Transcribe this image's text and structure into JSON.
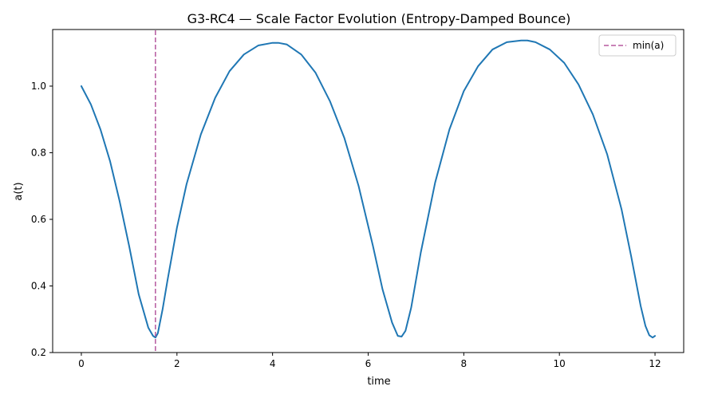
{
  "chart_data": {
    "type": "line",
    "title": "G3-RC4 — Scale Factor Evolution (Entropy-Damped Bounce)",
    "xlabel": "time",
    "ylabel": "a(t)",
    "xlim": [
      -0.6,
      12.6
    ],
    "ylim": [
      0.2,
      1.17
    ],
    "xticks": [
      0,
      2,
      4,
      6,
      8,
      10,
      12
    ],
    "yticks": [
      0.2,
      0.4,
      0.6,
      0.8,
      1.0
    ],
    "xtick_labels": [
      "0",
      "2",
      "4",
      "6",
      "8",
      "10",
      "12"
    ],
    "ytick_labels": [
      "0.2",
      "0.4",
      "0.6",
      "0.8",
      "1.0"
    ],
    "grid": false,
    "legend_position": "top-right",
    "series": [
      {
        "name": "",
        "color": "#1f77b4",
        "x": [
          0.0,
          0.2,
          0.4,
          0.6,
          0.8,
          1.0,
          1.2,
          1.4,
          1.5,
          1.55,
          1.6,
          1.7,
          1.8,
          2.0,
          2.2,
          2.5,
          2.8,
          3.1,
          3.4,
          3.7,
          4.0,
          4.12,
          4.3,
          4.6,
          4.9,
          5.2,
          5.5,
          5.8,
          6.1,
          6.3,
          6.5,
          6.62,
          6.7,
          6.78,
          6.9,
          7.1,
          7.4,
          7.7,
          8.0,
          8.3,
          8.6,
          8.9,
          9.2,
          9.33,
          9.5,
          9.8,
          10.1,
          10.4,
          10.7,
          11.0,
          11.3,
          11.5,
          11.7,
          11.8,
          11.88,
          11.95,
          12.0
        ],
        "values": [
          1.0,
          0.945,
          0.87,
          0.775,
          0.655,
          0.52,
          0.375,
          0.275,
          0.25,
          0.245,
          0.258,
          0.33,
          0.415,
          0.575,
          0.705,
          0.855,
          0.965,
          1.045,
          1.095,
          1.122,
          1.13,
          1.13,
          1.125,
          1.095,
          1.04,
          0.955,
          0.845,
          0.7,
          0.52,
          0.39,
          0.29,
          0.25,
          0.248,
          0.265,
          0.335,
          0.5,
          0.71,
          0.87,
          0.985,
          1.06,
          1.11,
          1.132,
          1.137,
          1.137,
          1.132,
          1.11,
          1.07,
          1.005,
          0.915,
          0.795,
          0.63,
          0.49,
          0.34,
          0.28,
          0.252,
          0.245,
          0.25
        ]
      }
    ],
    "vline": {
      "x": 1.55,
      "label": "min(a)",
      "color": "#b5589f",
      "style": "dashed"
    }
  }
}
